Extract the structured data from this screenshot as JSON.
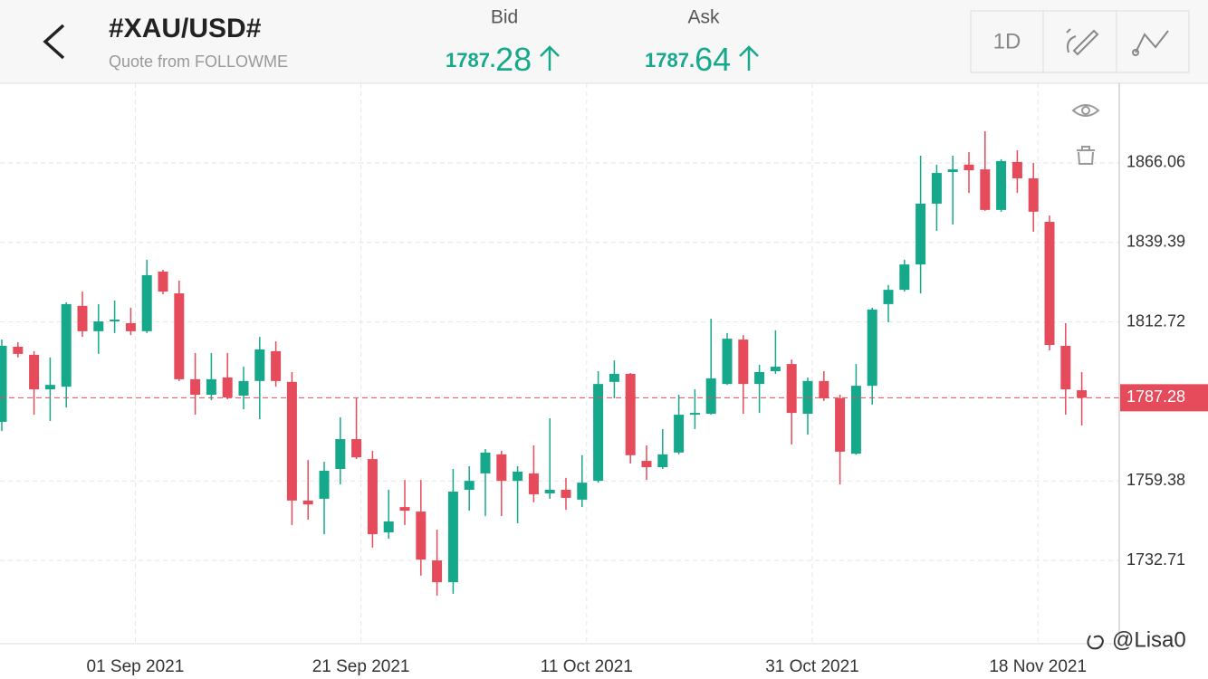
{
  "header": {
    "title": "#XAU/USD#",
    "subtitle": "Quote from FOLLOWME",
    "bid": {
      "label": "Bid",
      "main": "1787.",
      "pips": "28"
    },
    "ask": {
      "label": "Ask",
      "main": "1787.",
      "pips": "64"
    },
    "period": "1D"
  },
  "watermark": "@Lisa0",
  "chart_data": {
    "type": "candlestick",
    "categories": [
      null,
      null,
      null,
      null,
      null,
      null,
      null,
      null,
      "01 Sep 2021",
      null,
      null,
      null,
      null,
      null,
      null,
      null,
      null,
      null,
      null,
      null,
      null,
      null,
      "21 Sep 2021",
      null,
      null,
      null,
      null,
      null,
      null,
      null,
      null,
      null,
      null,
      null,
      null,
      null,
      "11 Oct 2021",
      null,
      null,
      null,
      null,
      null,
      null,
      null,
      null,
      null,
      null,
      null,
      null,
      null,
      "31 Oct 2021",
      null,
      null,
      null,
      null,
      null,
      null,
      null,
      null,
      null,
      null,
      null,
      null,
      null,
      "18 Nov 2021",
      null,
      null,
      null
    ],
    "open": [
      1779.2,
      1804.4,
      1801.7,
      1790.1,
      1791.0,
      1818.1,
      1809.6,
      1812.9,
      1812.3,
      1809.6,
      1829.6,
      1822.3,
      1793.5,
      1788.3,
      1794.1,
      1788.0,
      1792.9,
      1802.9,
      1792.6,
      1752.8,
      1753.4,
      1763.4,
      1773.4,
      1766.7,
      1742.1,
      1750.6,
      1749.1,
      1732.7,
      1725.4,
      1756.4,
      1761.9,
      1768.3,
      1759.4,
      1761.9,
      1755.2,
      1756.4,
      1753.1,
      1759.4,
      1792.6,
      1795.3,
      1766.1,
      1764.0,
      1768.9,
      1781.6,
      1781.9,
      1791.9,
      1806.8,
      1791.9,
      1796.2,
      1798.6,
      1781.9,
      1792.9,
      1787.1,
      1768.5,
      1791.3,
      1818.7,
      1823.5,
      1832.0,
      1852.4,
      1863.0,
      1865.5,
      1863.9,
      1850.3,
      1866.4,
      1860.9,
      1846.3,
      1804.7,
      1789.8
    ],
    "high": [
      1806.8,
      1805.9,
      1802.9,
      1800.8,
      1819.3,
      1822.9,
      1818.7,
      1819.9,
      1817.5,
      1833.6,
      1830.2,
      1826.6,
      1802.3,
      1802.3,
      1802.3,
      1797.7,
      1807.7,
      1806.2,
      1795.9,
      1766.4,
      1765.8,
      1780.7,
      1787.1,
      1769.5,
      1756.4,
      1759.7,
      1759.7,
      1743.0,
      1763.4,
      1764.3,
      1770.1,
      1769.5,
      1764.3,
      1771.3,
      1780.4,
      1760.4,
      1768.0,
      1796.2,
      1799.8,
      1795.6,
      1771.3,
      1776.8,
      1788.3,
      1790.1,
      1813.8,
      1809.0,
      1808.3,
      1798.3,
      1809.9,
      1800.1,
      1794.1,
      1796.2,
      1788.3,
      1798.6,
      1817.5,
      1825.1,
      1833.6,
      1868.5,
      1865.5,
      1868.5,
      1869.7,
      1876.7,
      1867.3,
      1870.3,
      1866.1,
      1848.4,
      1812.3,
      1795.9
    ],
    "low": [
      1776.1,
      1800.8,
      1781.6,
      1779.5,
      1784.0,
      1807.7,
      1802.0,
      1809.0,
      1808.3,
      1809.0,
      1822.0,
      1792.9,
      1781.6,
      1786.5,
      1786.8,
      1783.4,
      1780.1,
      1791.0,
      1744.6,
      1746.4,
      1741.5,
      1758.2,
      1766.7,
      1737.0,
      1740.0,
      1744.6,
      1727.6,
      1720.9,
      1721.5,
      1749.4,
      1747.6,
      1747.6,
      1745.2,
      1752.2,
      1753.4,
      1749.7,
      1750.6,
      1758.8,
      1787.1,
      1765.2,
      1759.7,
      1763.4,
      1768.3,
      1776.8,
      1781.6,
      1791.6,
      1781.9,
      1782.2,
      1795.3,
      1771.6,
      1774.9,
      1786.2,
      1758.2,
      1768.2,
      1785.0,
      1812.6,
      1822.9,
      1822.3,
      1843.3,
      1845.4,
      1856.0,
      1850.0,
      1849.7,
      1856.0,
      1843.0,
      1803.2,
      1781.6,
      1778.0
    ],
    "close": [
      1804.7,
      1802.0,
      1790.1,
      1791.6,
      1818.7,
      1809.6,
      1812.9,
      1813.5,
      1809.6,
      1828.4,
      1822.9,
      1793.5,
      1788.3,
      1793.5,
      1787.4,
      1792.9,
      1803.5,
      1792.9,
      1752.8,
      1751.5,
      1762.8,
      1773.4,
      1767.3,
      1741.5,
      1745.8,
      1749.4,
      1733.0,
      1725.4,
      1755.8,
      1759.4,
      1768.9,
      1759.4,
      1762.5,
      1754.9,
      1756.4,
      1753.7,
      1758.8,
      1791.9,
      1795.3,
      1768.0,
      1764.0,
      1768.3,
      1781.6,
      1782.2,
      1793.8,
      1807.1,
      1791.9,
      1795.9,
      1797.7,
      1782.2,
      1792.9,
      1787.1,
      1769.2,
      1791.3,
      1816.9,
      1823.5,
      1832.0,
      1852.4,
      1862.7,
      1863.9,
      1863.6,
      1850.3,
      1866.7,
      1860.9,
      1849.7,
      1805.0,
      1790.1,
      1787.28
    ],
    "up_color": "#16a88a",
    "down_color": "#e54b5a",
    "last_price": 1787.28,
    "ylim": [
      1705.07,
      1892.79
    ],
    "yticks": [
      1732.71,
      1759.38,
      1812.72,
      1839.39,
      1866.06
    ],
    "grid": true
  }
}
